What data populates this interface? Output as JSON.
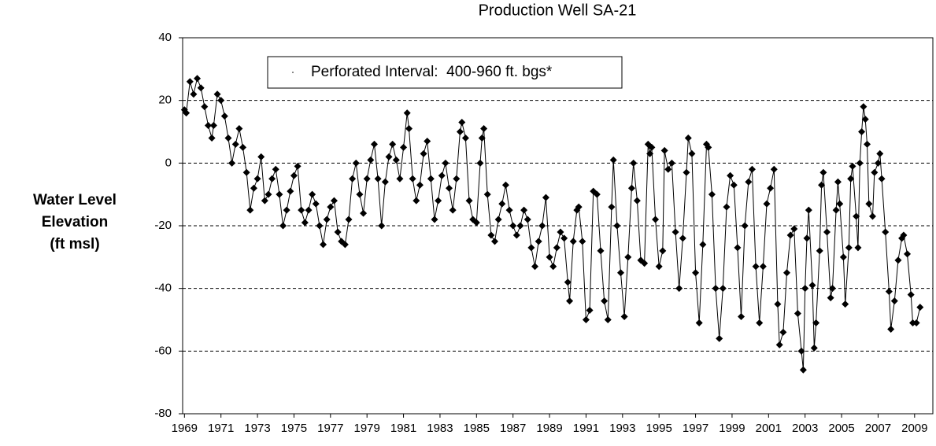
{
  "chart_data": {
    "type": "line",
    "title": "Production Well SA-21",
    "ylabel": [
      "Water Level",
      "Elevation",
      "(ft msl)"
    ],
    "xlim": [
      1968.9,
      2010
    ],
    "xticks": [
      1969,
      1971,
      1973,
      1975,
      1977,
      1979,
      1981,
      1983,
      1985,
      1987,
      1989,
      1991,
      1993,
      1995,
      1997,
      1999,
      2001,
      2003,
      2005,
      2007,
      2009
    ],
    "ylim": [
      -80,
      40
    ],
    "yticks": [
      -80,
      -60,
      -40,
      -20,
      0,
      20,
      40
    ],
    "grid": true,
    "legend": "top-left",
    "x": [
      1969.0,
      1969.1,
      1969.3,
      1969.5,
      1969.7,
      1969.9,
      1970.1,
      1970.3,
      1970.5,
      1970.6,
      1970.8,
      1971.0,
      1971.2,
      1971.4,
      1971.6,
      1971.8,
      1972.0,
      1972.2,
      1972.4,
      1972.6,
      1972.8,
      1973.0,
      1973.2,
      1973.4,
      1973.6,
      1973.8,
      1974.0,
      1974.2,
      1974.4,
      1974.6,
      1974.8,
      1975.0,
      1975.2,
      1975.4,
      1975.6,
      1975.8,
      1976.0,
      1976.2,
      1976.4,
      1976.6,
      1976.8,
      1977.0,
      1977.2,
      1977.4,
      1977.6,
      1977.8,
      1978.0,
      1978.2,
      1978.4,
      1978.6,
      1978.8,
      1979.0,
      1979.2,
      1979.4,
      1979.6,
      1979.8,
      1980.0,
      1980.2,
      1980.4,
      1980.6,
      1980.8,
      1981.0,
      1981.2,
      1981.3,
      1981.5,
      1981.7,
      1981.9,
      1982.1,
      1982.3,
      1982.5,
      1982.7,
      1982.9,
      1983.1,
      1983.3,
      1983.5,
      1983.7,
      1983.9,
      1984.1,
      1984.2,
      1984.4,
      1984.6,
      1984.8,
      1985.0,
      1985.2,
      1985.3,
      1985.4,
      1985.6,
      1985.8,
      1986.0,
      1986.2,
      1986.4,
      1986.6,
      1986.8,
      1987.0,
      1987.2,
      1987.4,
      1987.6,
      1987.8,
      1988.0,
      1988.2,
      1988.4,
      1988.6,
      1988.8,
      1989.0,
      1989.2,
      1989.4,
      1989.6,
      1989.8,
      1990.0,
      1990.1,
      1990.3,
      1990.5,
      1990.6,
      1990.8,
      1991.0,
      1991.2,
      1991.4,
      1991.6,
      1991.8,
      1992.0,
      1992.2,
      1992.4,
      1992.5,
      1992.7,
      1992.9,
      1993.1,
      1993.3,
      1993.5,
      1993.6,
      1993.8,
      1994.0,
      1994.2,
      1994.4,
      1994.5,
      1994.6,
      1994.8,
      1995.0,
      1995.2,
      1995.3,
      1995.5,
      1995.7,
      1995.9,
      1996.1,
      1996.3,
      1996.5,
      1996.6,
      1996.8,
      1997.0,
      1997.2,
      1997.4,
      1997.6,
      1997.7,
      1997.9,
      1998.1,
      1998.3,
      1998.5,
      1998.7,
      1998.9,
      1999.1,
      1999.3,
      1999.5,
      1999.7,
      1999.9,
      2000.1,
      2000.3,
      2000.5,
      2000.7,
      2000.9,
      2001.1,
      2001.3,
      2001.5,
      2001.6,
      2001.8,
      2002.0,
      2002.2,
      2002.4,
      2002.6,
      2002.8,
      2002.9,
      2003.0,
      2003.1,
      2003.2,
      2003.4,
      2003.5,
      2003.6,
      2003.8,
      2003.9,
      2004.0,
      2004.2,
      2004.4,
      2004.5,
      2004.7,
      2004.8,
      2004.9,
      2005.1,
      2005.2,
      2005.4,
      2005.5,
      2005.6,
      2005.8,
      2005.9,
      2006.0,
      2006.1,
      2006.2,
      2006.3,
      2006.4,
      2006.5,
      2006.7,
      2006.8,
      2007.0,
      2007.1,
      2007.2,
      2007.4,
      2007.6,
      2007.7,
      2007.9,
      2008.1,
      2008.3,
      2008.4,
      2008.6,
      2008.8,
      2008.9,
      2009.1,
      2009.3
    ],
    "series": [
      {
        "name": "Perforated Interval:  400-960 ft. bgs*",
        "color": "#000000",
        "values": [
          17,
          16,
          26,
          22,
          27,
          24,
          18,
          12,
          8,
          12,
          22,
          20,
          15,
          8,
          0,
          6,
          11,
          5,
          -3,
          -15,
          -8,
          -5,
          2,
          -12,
          -10,
          -5,
          -2,
          -10,
          -20,
          -15,
          -9,
          -4,
          -1,
          -15,
          -19,
          -15,
          -10,
          -13,
          -20,
          -26,
          -18,
          -14,
          -12,
          -22,
          -25,
          -26,
          -18,
          -5,
          0,
          -10,
          -16,
          -5,
          1,
          6,
          -5,
          -20,
          -6,
          2,
          6,
          1,
          -5,
          5,
          16,
          11,
          -5,
          -12,
          -7,
          3,
          7,
          -5,
          -18,
          -12,
          -4,
          0,
          -8,
          -15,
          -5,
          10,
          13,
          8,
          -12,
          -18,
          -19,
          0,
          8,
          11,
          -10,
          -23,
          -25,
          -18,
          -13,
          -7,
          -15,
          -20,
          -23,
          -20,
          -15,
          -18,
          -27,
          -33,
          -25,
          -20,
          -11,
          -30,
          -33,
          -27,
          -22,
          -24,
          -38,
          -44,
          -25,
          -15,
          -14,
          -25,
          -50,
          -47,
          -9,
          -10,
          -28,
          -44,
          -50,
          -14,
          1,
          -20,
          -35,
          -49,
          -30,
          -8,
          0,
          -12,
          -31,
          -32,
          6,
          3,
          5,
          -18,
          -33,
          -28,
          4,
          -2,
          0,
          -22,
          -40,
          -24,
          -3,
          8,
          3,
          -35,
          -51,
          -26,
          6,
          5,
          -10,
          -40,
          -56,
          -40,
          -14,
          -4,
          -7,
          -27,
          -49,
          -20,
          -6,
          -2,
          -33,
          -51,
          -33,
          -13,
          -8,
          -2,
          -45,
          -58,
          -54,
          -35,
          -23,
          -21,
          -48,
          -60,
          -66,
          -40,
          -24,
          -15,
          -39,
          -59,
          -51,
          -28,
          -7,
          -3,
          -22,
          -43,
          -40,
          -15,
          -6,
          -13,
          -30,
          -45,
          -27,
          -5,
          -1,
          -17,
          -27,
          0,
          10,
          18,
          14,
          6,
          -13,
          -17,
          -3,
          0,
          3,
          -5,
          -22,
          -41,
          -53,
          -44,
          -31,
          -24,
          -23,
          -29,
          -42,
          -51,
          -51,
          -46
        ]
      }
    ]
  }
}
